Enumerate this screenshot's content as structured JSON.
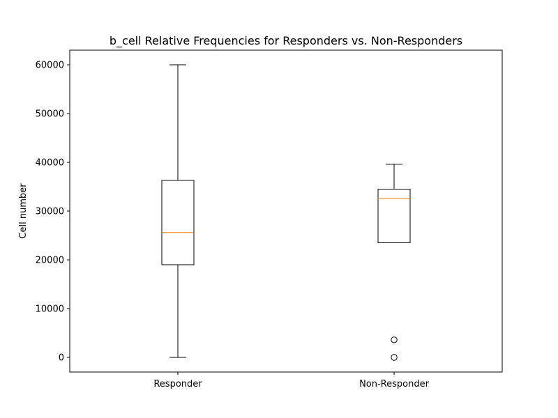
{
  "chart_data": {
    "type": "box",
    "title": "b_cell Relative Frequencies for Responders vs. Non-Responders",
    "xlabel": "",
    "ylabel": "Cell number",
    "ylim": [
      -3000,
      63000
    ],
    "yticks": [
      0,
      10000,
      20000,
      30000,
      40000,
      50000,
      60000
    ],
    "categories": [
      "Responder",
      "Non-Responder"
    ],
    "boxes": [
      {
        "category": "Responder",
        "whisker_low": 0,
        "q1": 19000,
        "median": 25600,
        "q3": 36300,
        "whisker_high": 60000,
        "outliers": []
      },
      {
        "category": "Non-Responder",
        "whisker_low": 23500,
        "q1": 23500,
        "median": 32600,
        "q3": 34500,
        "whisker_high": 39600,
        "outliers": [
          3600,
          0
        ]
      }
    ],
    "colors": {
      "box": "#000000",
      "median": "#ff7f0e",
      "flier": "#000000"
    },
    "grid": false,
    "legend": "none"
  }
}
